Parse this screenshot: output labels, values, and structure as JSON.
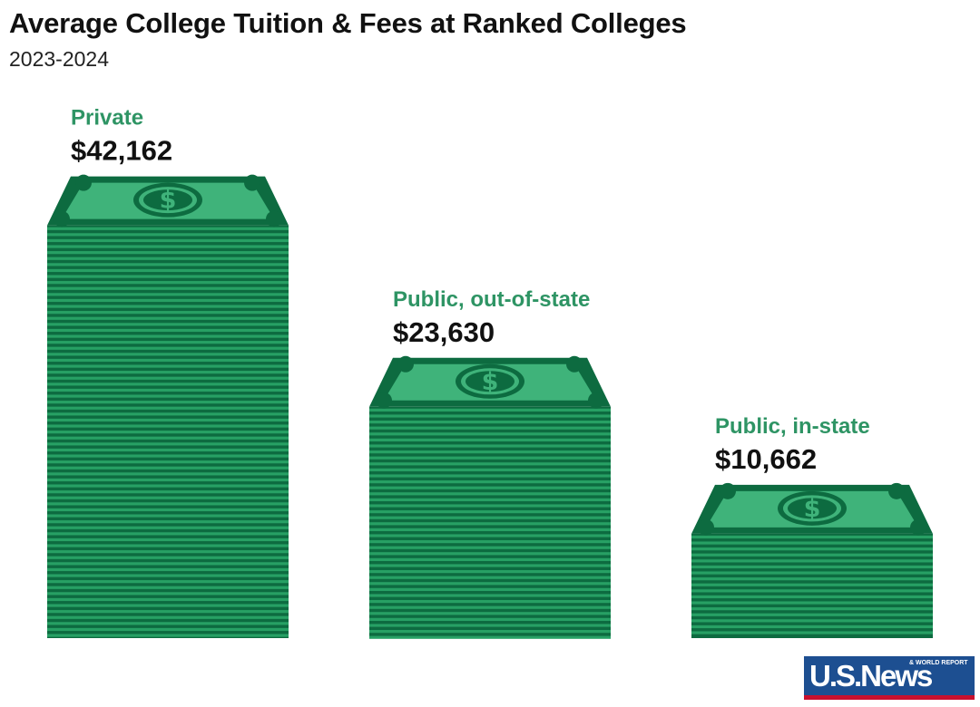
{
  "header": {
    "title": "Average College Tuition & Fees at Ranked Colleges",
    "subtitle": "2023-2024"
  },
  "chart_data": {
    "type": "bar",
    "title": "Average College Tuition & Fees at Ranked Colleges",
    "subtitle": "2023-2024",
    "categories": [
      "Private",
      "Public, out-of-state",
      "Public, in-state"
    ],
    "values": [
      42162,
      23630,
      10662
    ],
    "value_labels": [
      "$42,162",
      "$23,630",
      "$10,662"
    ],
    "grid": false,
    "legend": "none"
  },
  "colors": {
    "label_green": "#2e9464",
    "bill_dark": "#0d6b40",
    "bill_mid": "#1d8a55",
    "bill_light": "#27a064",
    "bill_face": "#3fb37a",
    "value_text": "#111111"
  },
  "logo": {
    "text": "U.S.News",
    "subtext": "& WORLD REPORT"
  }
}
